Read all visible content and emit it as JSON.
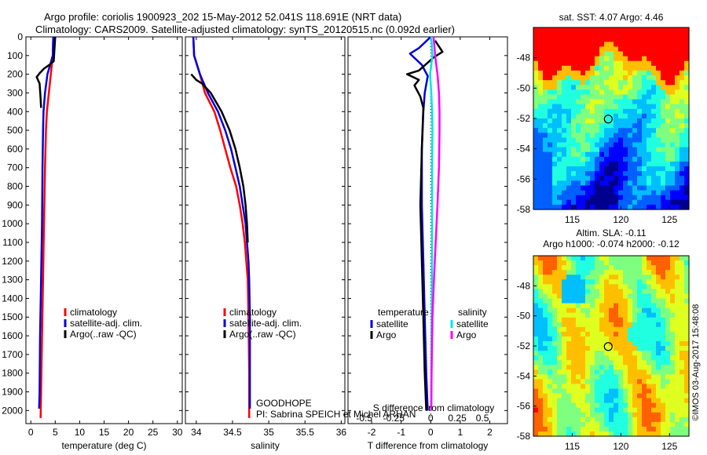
{
  "titles": {
    "line1": "Argo profile: coriolis 1900923_202 15-May-2012 52.041S 118.691E (NRT data)",
    "line2": "Climatology: CARS2009. Satellite-adjusted climatology: synTS_20120515.nc (0.092d earlier)"
  },
  "annotations": {
    "project": "GOODHOPE",
    "pi": "PI: Sabrina SPEICH et Michel ARHAN",
    "stamp": "©IMOS 03-Aug-2017 15:48:08"
  },
  "colors": {
    "climatology": "#ff0000",
    "satellite": "#0000dd",
    "argo": "#000000",
    "sal_satellite": "#00e5e5",
    "sal_argo": "#ff00ff"
  },
  "chart_data": [
    {
      "type": "line",
      "xlabel": "temperature (deg C)",
      "ylabel": "",
      "xlim": [
        -1,
        31
      ],
      "ylim": [
        2070,
        0
      ],
      "xticks": [
        "0",
        "5",
        "10",
        "15",
        "20",
        "25",
        "30"
      ],
      "yticks": [
        "0",
        "100",
        "200",
        "300",
        "400",
        "500",
        "600",
        "700",
        "800",
        "900",
        "1000",
        "1100",
        "1200",
        "1300",
        "1400",
        "1500",
        "1600",
        "1700",
        "1800",
        "1900",
        "2000"
      ],
      "legend": {
        "position": "lower-center",
        "entries": [
          "climatology",
          "satellite-adj. clim.",
          "Argo(..raw -QC)"
        ]
      },
      "series": [
        {
          "name": "climatology",
          "color": "#ff0000",
          "points": [
            [
              4.6,
              0
            ],
            [
              4.5,
              100
            ],
            [
              4.1,
              200
            ],
            [
              3.7,
              300
            ],
            [
              3.3,
              400
            ],
            [
              3.1,
              500
            ],
            [
              2.9,
              700
            ],
            [
              2.7,
              1000
            ],
            [
              2.5,
              1300
            ],
            [
              2.3,
              1600
            ],
            [
              2.1,
              1900
            ],
            [
              2.0,
              2040
            ]
          ]
        },
        {
          "name": "satellite-adj. clim.",
          "color": "#0000dd",
          "points": [
            [
              4.6,
              0
            ],
            [
              4.5,
              100
            ],
            [
              3.4,
              200
            ],
            [
              2.9,
              300
            ],
            [
              2.6,
              400
            ],
            [
              2.5,
              500
            ],
            [
              2.4,
              700
            ],
            [
              2.3,
              1000
            ],
            [
              2.1,
              1300
            ],
            [
              1.9,
              1600
            ],
            [
              1.8,
              1900
            ],
            [
              1.7,
              1990
            ]
          ]
        },
        {
          "name": "Argo(..raw -QC)",
          "color": "#000000",
          "points": [
            [
              5.0,
              0
            ],
            [
              4.8,
              80
            ],
            [
              4.7,
              130
            ],
            [
              3.8,
              150
            ],
            [
              2.7,
              170
            ],
            [
              1.8,
              195
            ],
            [
              1.2,
              215
            ],
            [
              1.8,
              250
            ],
            [
              2.0,
              330
            ],
            [
              2.1,
              380
            ]
          ]
        }
      ]
    },
    {
      "type": "line",
      "xlabel": "salinity",
      "ylabel": "",
      "xlim": [
        33.85,
        36.05
      ],
      "ylim": [
        2070,
        0
      ],
      "xticks": [
        "34",
        "34.5",
        "35",
        "35.5",
        "36"
      ],
      "legend": {
        "position": "lower-center",
        "entries": [
          "climatology",
          "satellite-adj. clim.",
          "Argo(..raw -QC)"
        ]
      },
      "series": [
        {
          "name": "climatology",
          "color": "#ff0000",
          "points": [
            [
              33.96,
              0
            ],
            [
              33.97,
              100
            ],
            [
              34.05,
              200
            ],
            [
              34.12,
              300
            ],
            [
              34.25,
              400
            ],
            [
              34.33,
              500
            ],
            [
              34.4,
              600
            ],
            [
              34.47,
              700
            ],
            [
              34.55,
              800
            ],
            [
              34.6,
              900
            ],
            [
              34.64,
              1000
            ],
            [
              34.67,
              1100
            ],
            [
              34.69,
              1200
            ],
            [
              34.71,
              1300
            ],
            [
              34.72,
              1500
            ],
            [
              34.73,
              1800
            ],
            [
              34.73,
              2040
            ]
          ]
        },
        {
          "name": "satellite-adj. clim.",
          "color": "#0000dd",
          "points": [
            [
              33.96,
              0
            ],
            [
              33.97,
              100
            ],
            [
              34.05,
              200
            ],
            [
              34.16,
              300
            ],
            [
              34.3,
              400
            ],
            [
              34.4,
              500
            ],
            [
              34.48,
              600
            ],
            [
              34.54,
              700
            ],
            [
              34.6,
              800
            ],
            [
              34.64,
              900
            ],
            [
              34.68,
              1000
            ],
            [
              34.7,
              1100
            ],
            [
              34.72,
              1200
            ],
            [
              34.73,
              1300
            ],
            [
              34.74,
              1500
            ],
            [
              34.74,
              1700
            ],
            [
              34.74,
              1990
            ]
          ]
        },
        {
          "name": "Argo(..raw -QC)",
          "color": "#000000",
          "points": [
            [
              33.93,
              200
            ],
            [
              34.0,
              230
            ],
            [
              34.08,
              250
            ],
            [
              34.2,
              300
            ],
            [
              34.35,
              400
            ],
            [
              34.46,
              500
            ],
            [
              34.54,
              600
            ],
            [
              34.6,
              700
            ],
            [
              34.65,
              800
            ],
            [
              34.68,
              900
            ],
            [
              34.7,
              1000
            ],
            [
              34.71,
              1100
            ]
          ]
        }
      ]
    },
    {
      "type": "line",
      "xlabel": "T difference from climatology",
      "xlabel2": "S difference from climatology",
      "xlim": [
        -2.8,
        2.6
      ],
      "ylim": [
        2070,
        0
      ],
      "xticks": [
        "-2",
        "-1",
        "0",
        "1",
        "2"
      ],
      "xticks2": [
        "-0.5",
        "-0.25",
        "0",
        "0.25",
        "0.5"
      ],
      "legend_headers": [
        "temperature",
        "salinity"
      ],
      "legend": {
        "position": "lower-center",
        "entries": [
          "satellite",
          "Argo",
          "satellite",
          "Argo"
        ]
      },
      "series": [
        {
          "name": "satellite",
          "color": "#0000dd",
          "points": [
            [
              0,
              0
            ],
            [
              -0.4,
              60
            ],
            [
              -0.7,
              90
            ],
            [
              -0.3,
              150
            ],
            [
              -0.1,
              210
            ],
            [
              -0.2,
              300
            ],
            [
              -0.25,
              400
            ],
            [
              -0.3,
              600
            ],
            [
              -0.3,
              900
            ],
            [
              -0.25,
              1200
            ],
            [
              -0.2,
              1500
            ],
            [
              -0.15,
              1800
            ],
            [
              -0.1,
              2000
            ]
          ]
        },
        {
          "name": "Argo",
          "color": "#000000",
          "points": [
            [
              0.15,
              20
            ],
            [
              0.4,
              80
            ],
            [
              0.1,
              110
            ],
            [
              -0.4,
              180
            ],
            [
              -0.8,
              200
            ],
            [
              -0.4,
              230
            ],
            [
              -0.55,
              260
            ],
            [
              -0.35,
              320
            ],
            [
              -0.25,
              380
            ],
            [
              -0.3,
              600
            ],
            [
              -0.35,
              900
            ],
            [
              -0.3,
              1200
            ],
            [
              -0.25,
              1500
            ],
            [
              -0.2,
              1800
            ],
            [
              -0.15,
              2000
            ]
          ]
        },
        {
          "name": "satellite",
          "color": "#00e5e5",
          "points": [
            [
              0.02,
              0
            ],
            [
              0.06,
              100
            ],
            [
              -0.02,
              200
            ],
            [
              0.02,
              300
            ],
            [
              0.05,
              400
            ],
            [
              0.06,
              500
            ],
            [
              0.05,
              700
            ],
            [
              0.05,
              1000
            ],
            [
              0.04,
              1300
            ],
            [
              0.03,
              1600
            ],
            [
              0.02,
              2000
            ]
          ]
        },
        {
          "name": "Argo",
          "color": "#ff00ff",
          "points": [
            [
              0.1,
              0
            ],
            [
              0.15,
              100
            ],
            [
              0.23,
              200
            ],
            [
              0.28,
              300
            ],
            [
              0.3,
              400
            ],
            [
              0.3,
              500
            ],
            [
              0.28,
              700
            ],
            [
              0.23,
              900
            ],
            [
              0.17,
              1100
            ],
            [
              0.11,
              1300
            ],
            [
              0.06,
              1500
            ],
            [
              0.03,
              1800
            ],
            [
              0.02,
              2000
            ]
          ]
        }
      ]
    },
    {
      "type": "heatmap",
      "title": "sat. SST: 4.07  Argo: 4.46",
      "xlim": [
        111,
        127
      ],
      "ylim": [
        -58,
        -46
      ],
      "xticks": [
        "115",
        "120",
        "125"
      ],
      "yticks": [
        "-48",
        "-50",
        "-52",
        "-54",
        "-56",
        "-58"
      ],
      "marker": [
        118.7,
        -52.04
      ]
    },
    {
      "type": "heatmap",
      "title": "Altim. SLA: -0.11",
      "subtitle": "Argo h1000: -0.074  h2000: -0.12",
      "xlim": [
        111,
        127
      ],
      "ylim": [
        -58,
        -46
      ],
      "xticks": [
        "115",
        "120",
        "125"
      ],
      "yticks": [
        "-48",
        "-50",
        "-52",
        "-54",
        "-56",
        "-58"
      ],
      "marker": [
        118.7,
        -52.04
      ]
    }
  ]
}
